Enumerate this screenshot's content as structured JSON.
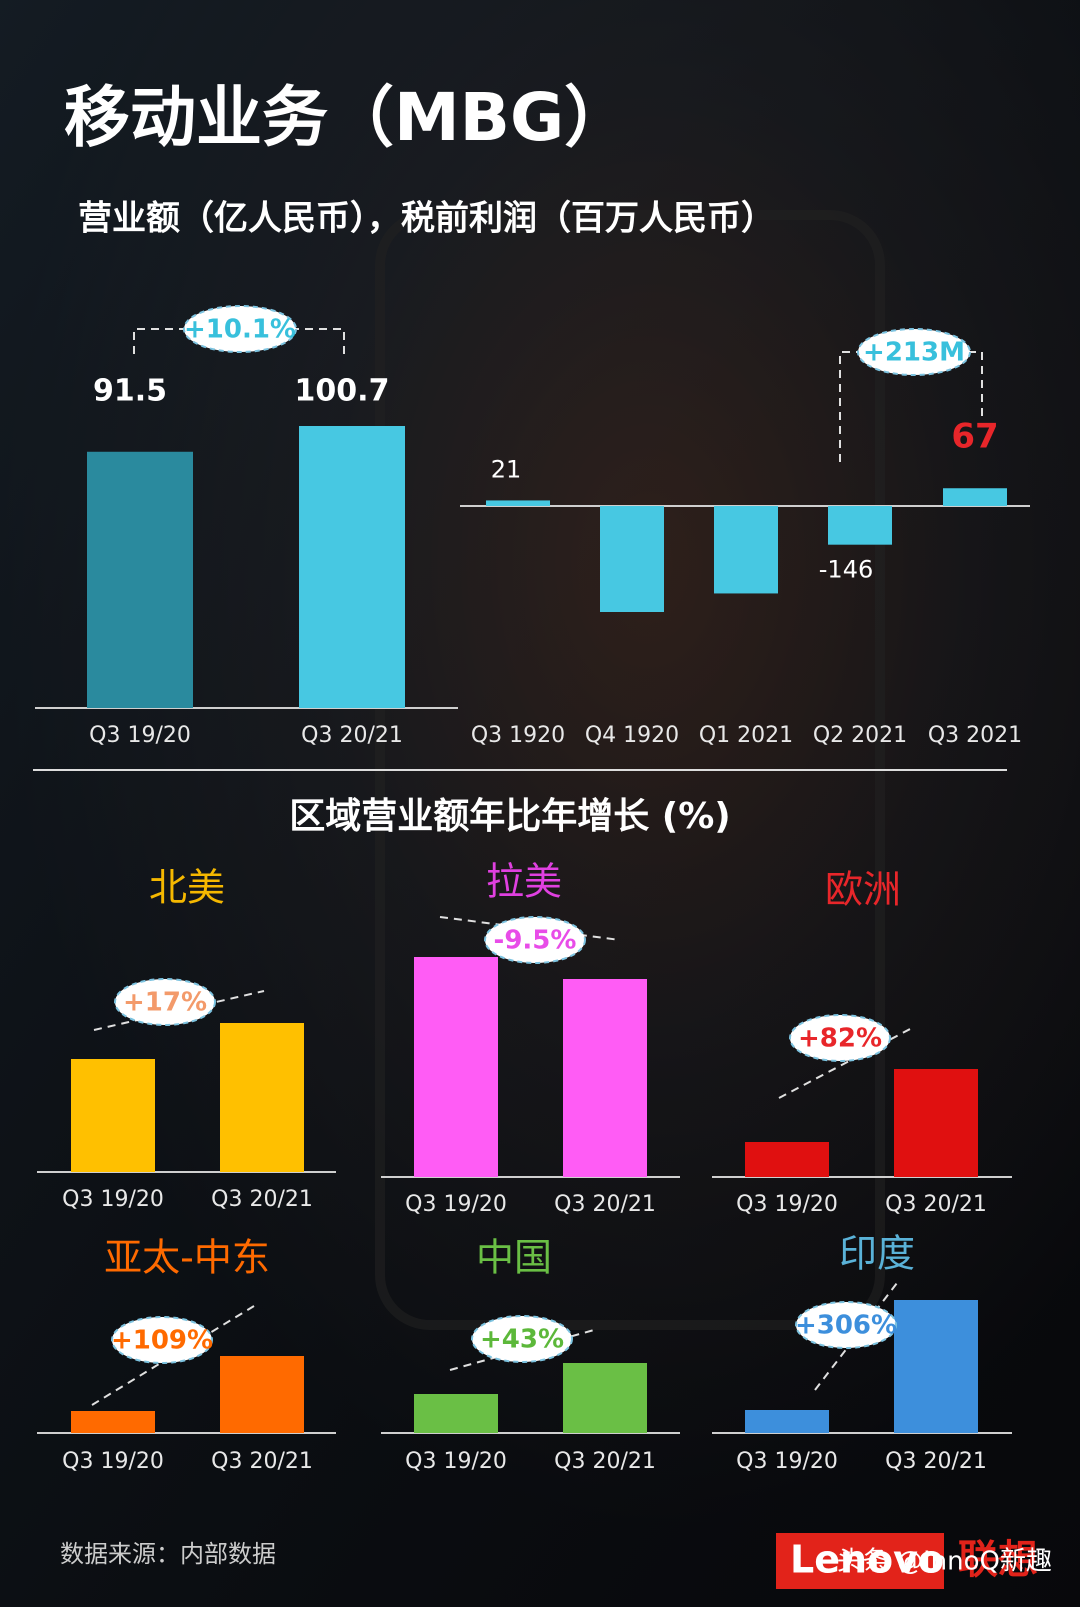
{
  "title": "移动业务（MBG）",
  "subtitle": "营业额（亿人民币），税前利润（百万人民币）",
  "section_title": "区域营业额年比年增长 (%)",
  "source": "数据来源：内部数据",
  "logo": "Lenovo",
  "logo_cn": "联想",
  "watermark": "头条 @InnoQ新趣",
  "chart_data": [
    {
      "type": "bar",
      "categories": [
        "Q3 19/20",
        "Q3 20/21"
      ],
      "values": [
        91.5,
        100.7
      ],
      "colors": [
        "#2a8a9e",
        "#47c8e2"
      ],
      "annotation": "+10.1%",
      "annotation_color": "#38c0dc"
    },
    {
      "type": "bar",
      "categories": [
        "Q3 1920",
        "Q4 1920",
        "Q1 2021",
        "Q2 2021",
        "Q3 2021"
      ],
      "values": [
        21,
        -400,
        -330,
        -146,
        67
      ],
      "value_labels": [
        "21",
        null,
        null,
        "-146",
        "67"
      ],
      "color": "#47c8e2",
      "annotation": "+213M",
      "annotation_color": "#38c0dc"
    },
    {
      "type": "bar",
      "title": "北美",
      "title_color": "#f5b800",
      "categories": [
        "Q3 19/20",
        "Q3 20/21"
      ],
      "values": [
        113,
        149
      ],
      "color": "#ffc000",
      "annotation": "+17%",
      "annotation_color": "#f39a6a"
    },
    {
      "type": "bar",
      "title": "拉美",
      "title_color": "#e040e0",
      "categories": [
        "Q3 19/20",
        "Q3 20/21"
      ],
      "values": [
        220,
        198
      ],
      "color": "#ff5cf5",
      "annotation": "-9.5%",
      "annotation_color": "#e84ce8"
    },
    {
      "type": "bar",
      "title": "欧洲",
      "title_color": "#e8262a",
      "categories": [
        "Q3 19/20",
        "Q3 20/21"
      ],
      "values": [
        35,
        108
      ],
      "color": "#e01010",
      "annotation": "+82%",
      "annotation_color": "#e8262a"
    },
    {
      "type": "bar",
      "title": "亚太-中东",
      "title_color": "#ff6a00",
      "categories": [
        "Q3 19/20",
        "Q3 20/21"
      ],
      "values": [
        22,
        77
      ],
      "color": "#ff6a00",
      "annotation": "+109%",
      "annotation_color": "#ff6a00"
    },
    {
      "type": "bar",
      "title": "中国",
      "title_color": "#6abf45",
      "categories": [
        "Q3 19/20",
        "Q3 20/21"
      ],
      "values": [
        39,
        70
      ],
      "color": "#6abf45",
      "annotation": "+43%",
      "annotation_color": "#5cb83a"
    },
    {
      "type": "bar",
      "title": "印度",
      "title_color": "#5ab2d8",
      "categories": [
        "Q3 19/20",
        "Q3 20/21"
      ],
      "values": [
        23,
        133
      ],
      "color": "#3d8fdc",
      "annotation": "+306%",
      "annotation_color": "#3d8fdc"
    }
  ]
}
